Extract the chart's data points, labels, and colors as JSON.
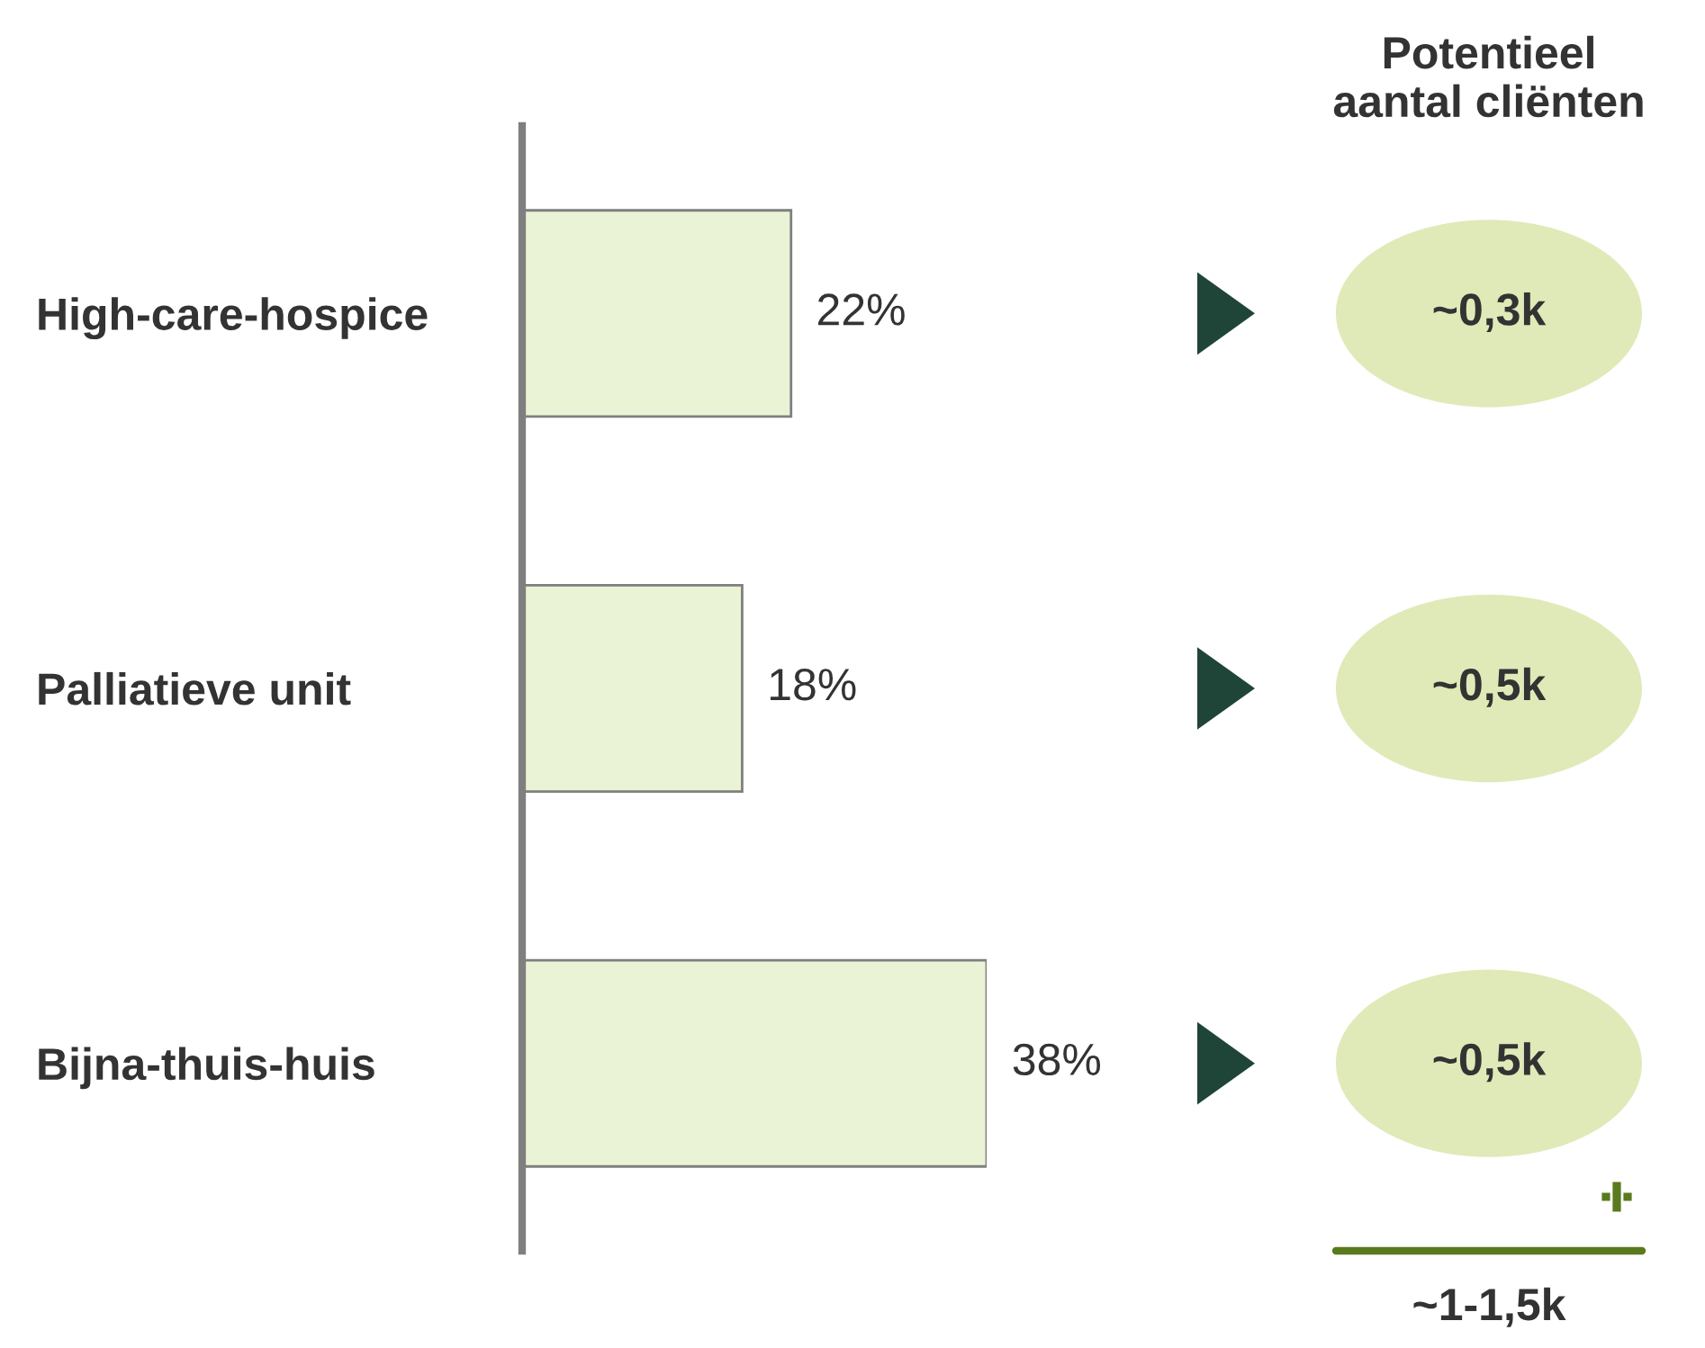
{
  "chart_data": {
    "type": "bar",
    "orientation": "horizontal",
    "categories": [
      "High-care-hospice",
      "Palliatieve unit",
      "Bijna-thuis-huis"
    ],
    "values": [
      22,
      18,
      38
    ],
    "value_labels": [
      "22%",
      "18%",
      "38%"
    ],
    "color": "#ebf3d6",
    "annotations": [
      "Potentieel\naantal cliënten",
      "~0,3k",
      "~0,5k",
      "~0,5k",
      "~1-1,5k"
    ]
  }
}
